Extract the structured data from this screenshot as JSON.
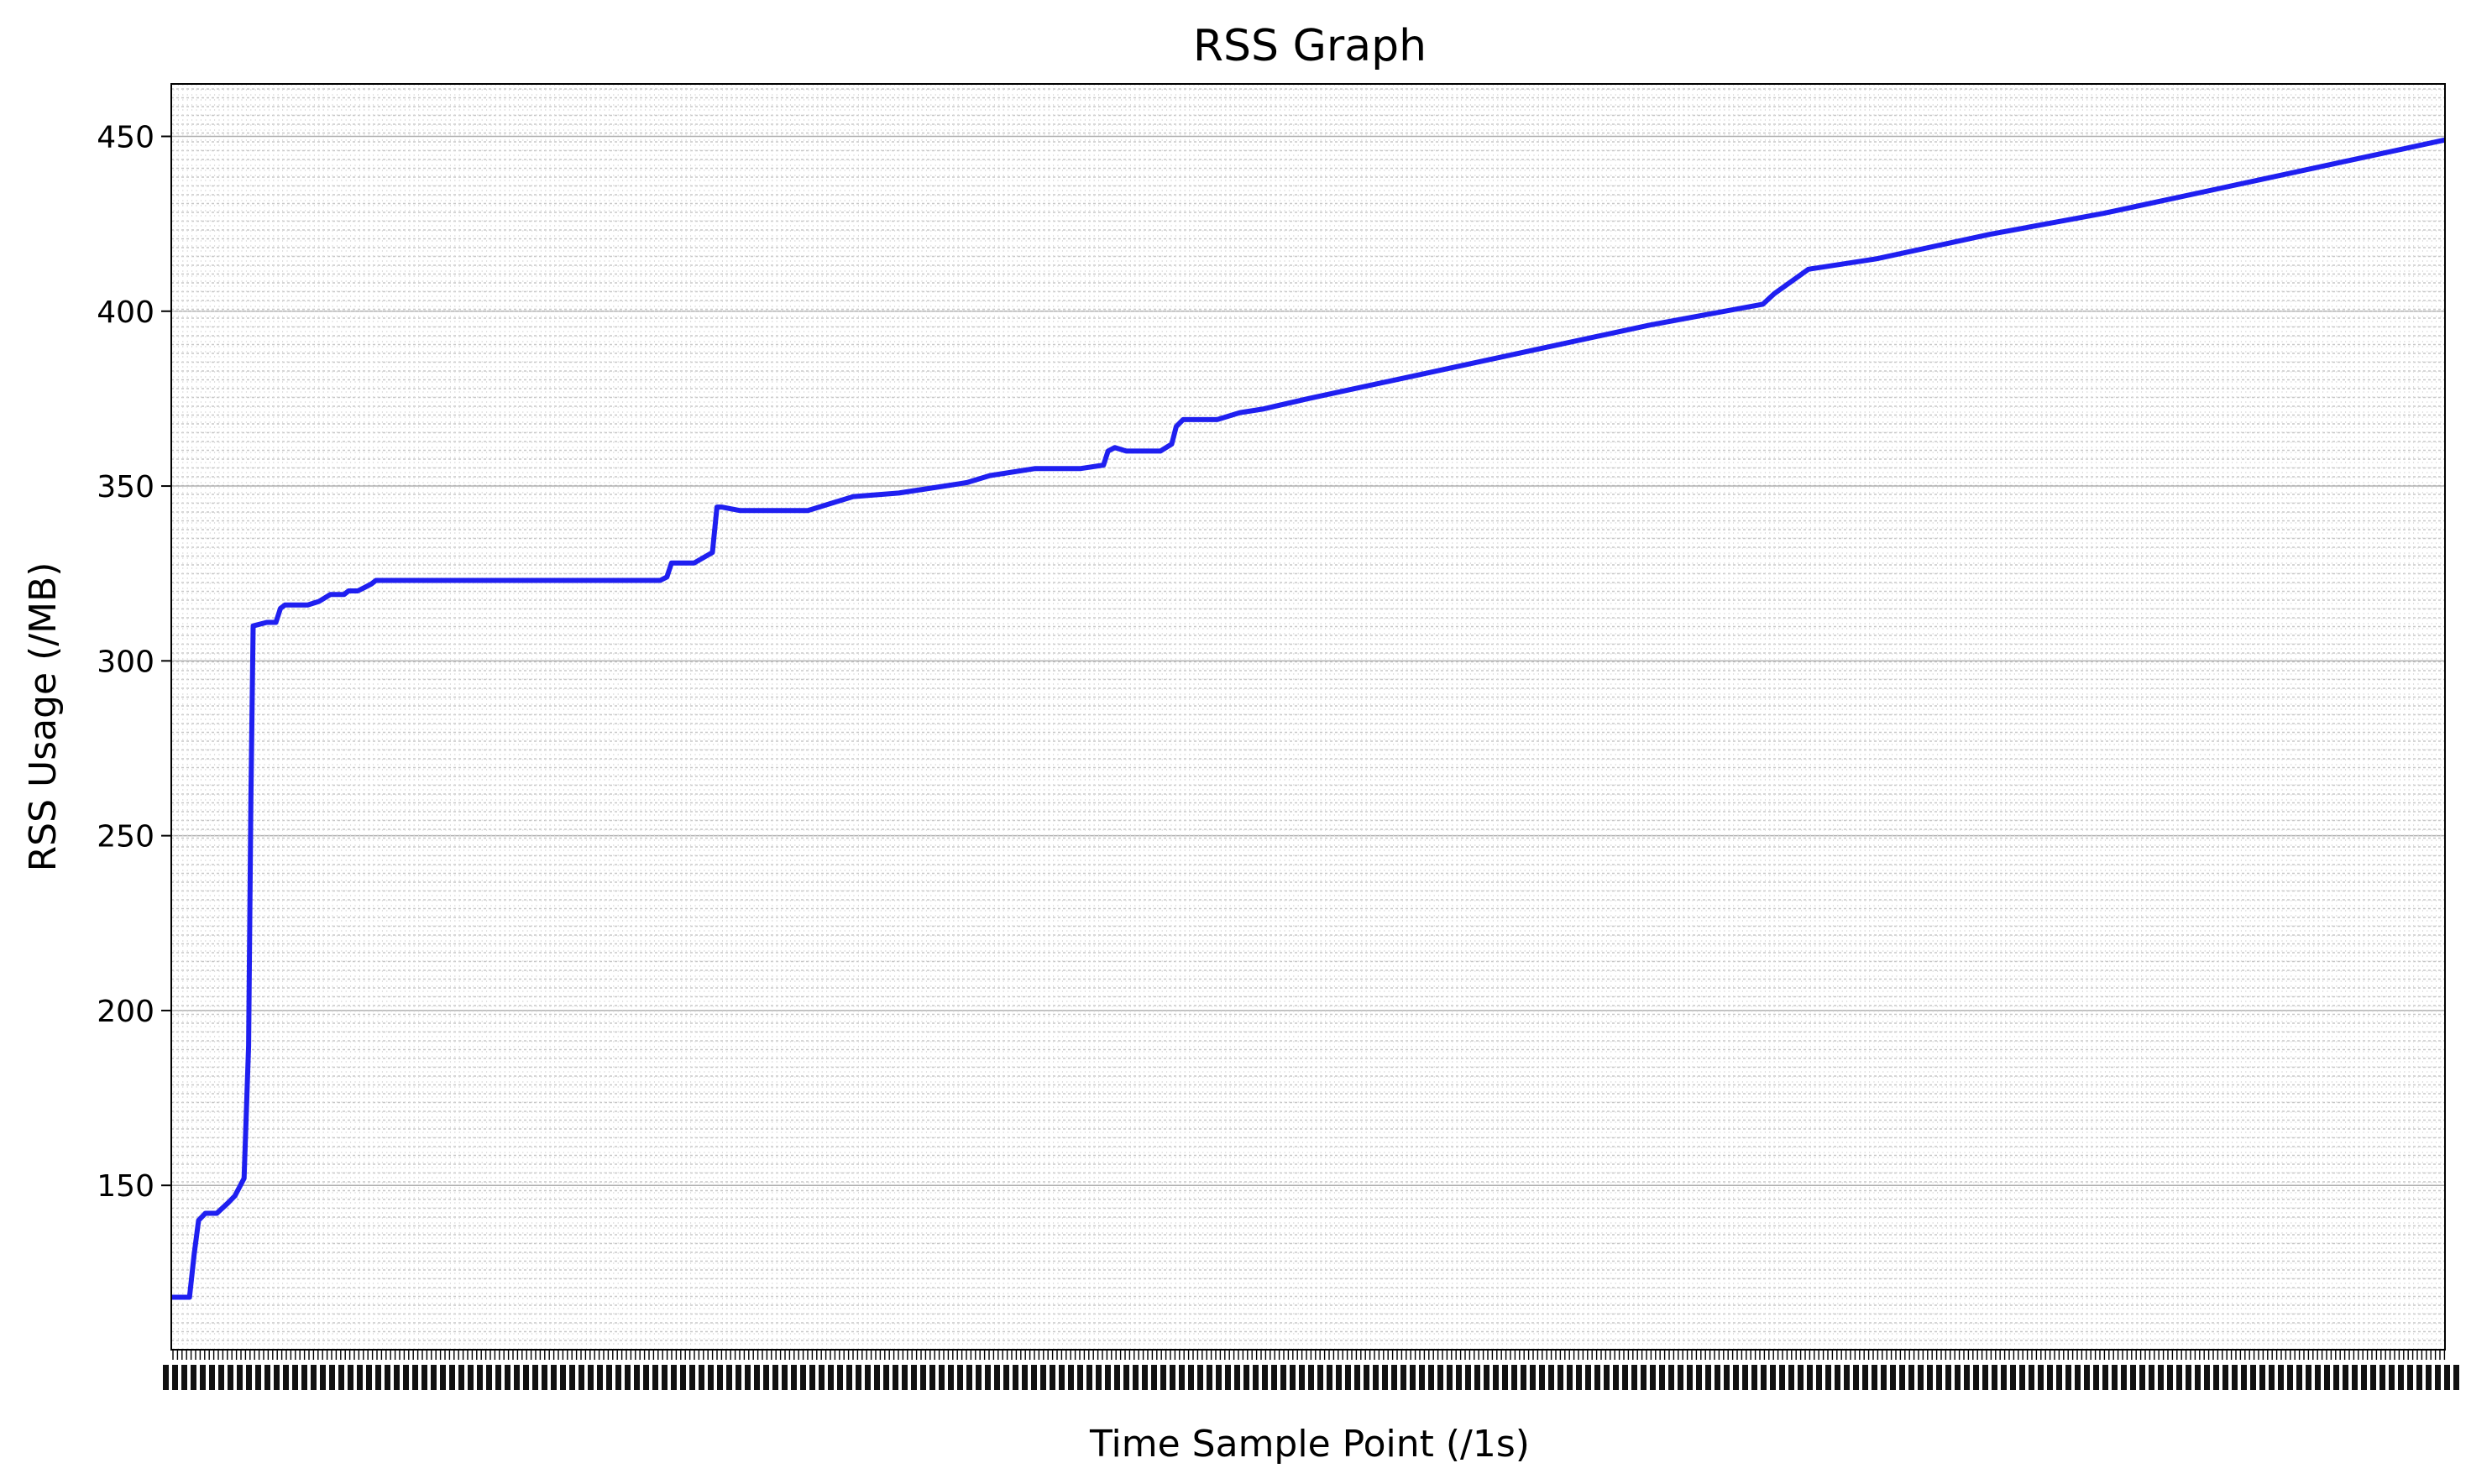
{
  "chart_data": {
    "type": "line",
    "title": "RSS Graph",
    "xlabel": "Time Sample Point (/1s)",
    "ylabel": "RSS Usage (/MB)",
    "xlim": [
      0,
      1000
    ],
    "ylim": [
      103,
      465
    ],
    "yticks": [
      150,
      200,
      250,
      300,
      350,
      400,
      450
    ],
    "grid": true,
    "line_color": "#1f1ff0",
    "series": [
      {
        "x": [
          0,
          8,
          10,
          12,
          15,
          20,
          25,
          28,
          32,
          34,
          35,
          36,
          42,
          46,
          48,
          50,
          60,
          65,
          70,
          76,
          78,
          82,
          85,
          88,
          90,
          100,
          110,
          120,
          150,
          180,
          200,
          215,
          218,
          220,
          225,
          230,
          238,
          240,
          242,
          250,
          260,
          270,
          280,
          290,
          300,
          320,
          340,
          350,
          360,
          380,
          400,
          410,
          412,
          415,
          420,
          425,
          435,
          440,
          442,
          445,
          450,
          455,
          460,
          470,
          480,
          500,
          550,
          600,
          650,
          700,
          705,
          720,
          750,
          800,
          850,
          900,
          950,
          1000
        ],
        "y": [
          118,
          118,
          130,
          140,
          142,
          142,
          145,
          147,
          152,
          190,
          260,
          310,
          311,
          311,
          315,
          316,
          316,
          317,
          319,
          319,
          320,
          320,
          321,
          322,
          323,
          323,
          323,
          323,
          323,
          323,
          323,
          323,
          324,
          328,
          328,
          328,
          331,
          344,
          344,
          343,
          343,
          343,
          343,
          345,
          347,
          348,
          350,
          351,
          353,
          355,
          355,
          356,
          360,
          361,
          360,
          360,
          360,
          362,
          367,
          369,
          369,
          369,
          369,
          371,
          372,
          375,
          382,
          389,
          396,
          402,
          405,
          412,
          415,
          422,
          428,
          435,
          442,
          449
        ]
      }
    ]
  }
}
